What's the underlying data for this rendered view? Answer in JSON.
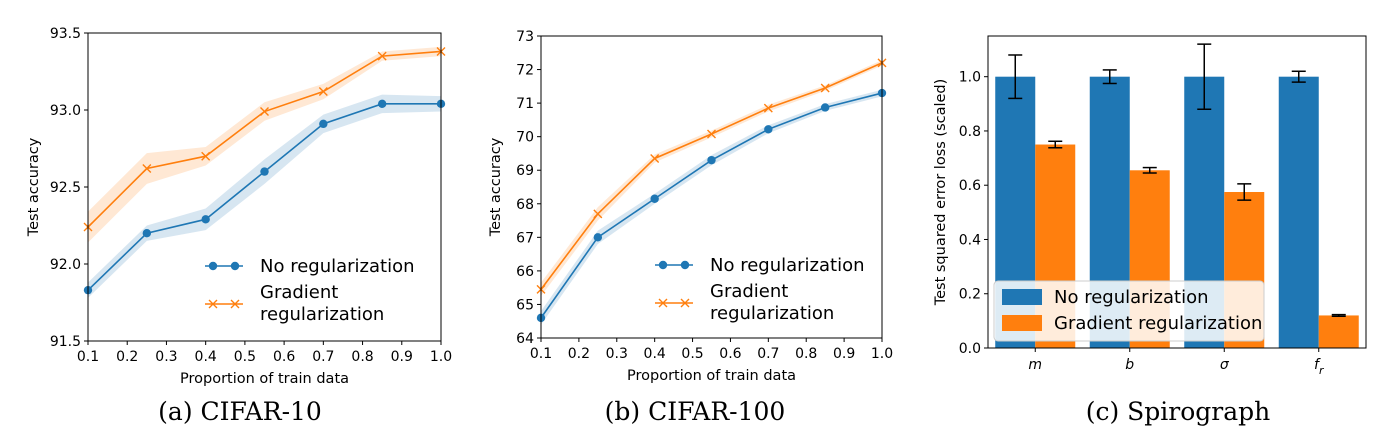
{
  "chart_data": [
    {
      "type": "line",
      "caption": "(a) CIFAR-10",
      "xlabel": "Proportion of train data",
      "ylabel": "Test accuracy",
      "xlim": [
        0.1,
        1.0
      ],
      "ylim": [
        91.5,
        93.5
      ],
      "xticks": [
        "0.1",
        "0.2",
        "0.3",
        "0.4",
        "0.5",
        "0.6",
        "0.7",
        "0.8",
        "0.9",
        "1.0"
      ],
      "yticks": [
        "91.5",
        "92.0",
        "92.5",
        "93.0",
        "93.5"
      ],
      "legend_placement": "lower-right",
      "series": [
        {
          "name": "No regularization",
          "color": "#1f77b4",
          "marker": "circle",
          "x": [
            0.1,
            0.25,
            0.4,
            0.55,
            0.7,
            0.85,
            1.0
          ],
          "y": [
            91.83,
            92.2,
            92.29,
            92.6,
            92.91,
            93.04,
            93.04
          ],
          "band": [
            0.05,
            0.05,
            0.07,
            0.08,
            0.06,
            0.06,
            0.05
          ]
        },
        {
          "name": "Gradient regularization",
          "color": "#ff7f0e",
          "marker": "x",
          "x": [
            0.1,
            0.25,
            0.4,
            0.55,
            0.7,
            0.85,
            1.0
          ],
          "y": [
            92.24,
            92.62,
            92.7,
            92.99,
            93.12,
            93.35,
            93.38
          ],
          "band": [
            0.1,
            0.1,
            0.06,
            0.06,
            0.05,
            0.03,
            0.03
          ]
        }
      ]
    },
    {
      "type": "line",
      "caption": "(b) CIFAR-100",
      "xlabel": "Proportion of train data",
      "ylabel": "Test accuracy",
      "xlim": [
        0.1,
        1.0
      ],
      "ylim": [
        64,
        73
      ],
      "xticks": [
        "0.1",
        "0.2",
        "0.3",
        "0.4",
        "0.5",
        "0.6",
        "0.7",
        "0.8",
        "0.9",
        "1.0"
      ],
      "yticks": [
        "64",
        "65",
        "66",
        "67",
        "68",
        "69",
        "70",
        "71",
        "72",
        "73"
      ],
      "legend_placement": "lower-right",
      "series": [
        {
          "name": "No regularization",
          "color": "#1f77b4",
          "marker": "circle",
          "x": [
            0.1,
            0.25,
            0.4,
            0.55,
            0.7,
            0.85,
            1.0
          ],
          "y": [
            64.6,
            67.0,
            68.15,
            69.3,
            70.22,
            70.87,
            71.3
          ],
          "band": [
            0.2,
            0.2,
            0.15,
            0.15,
            0.12,
            0.1,
            0.1
          ]
        },
        {
          "name": "Gradient regularization",
          "color": "#ff7f0e",
          "marker": "x",
          "x": [
            0.1,
            0.25,
            0.4,
            0.55,
            0.7,
            0.85,
            1.0
          ],
          "y": [
            65.45,
            67.7,
            69.35,
            70.08,
            70.85,
            71.45,
            72.2
          ],
          "band": [
            0.2,
            0.2,
            0.12,
            0.1,
            0.1,
            0.08,
            0.08
          ]
        }
      ]
    },
    {
      "type": "bar",
      "caption": "(c) Spirograph",
      "ylabel": "Test squared error loss (scaled)",
      "ylim": [
        0.0,
        1.15
      ],
      "yticks": [
        "0.0",
        "0.2",
        "0.4",
        "0.6",
        "0.8",
        "1.0"
      ],
      "categories": [
        "m",
        "b",
        "σ",
        "f"
      ],
      "category_subscripts": [
        "",
        "",
        "",
        "r"
      ],
      "legend_placement": "lower-left",
      "series": [
        {
          "name": "No regularization",
          "color": "#1f77b4",
          "values": [
            1.0,
            1.0,
            1.0,
            1.0
          ],
          "errors": [
            0.08,
            0.025,
            0.12,
            0.02
          ]
        },
        {
          "name": "Gradient regularization",
          "color": "#ff7f0e",
          "values": [
            0.75,
            0.655,
            0.575,
            0.12
          ],
          "errors": [
            0.012,
            0.01,
            0.03,
            0.003
          ]
        }
      ]
    }
  ]
}
